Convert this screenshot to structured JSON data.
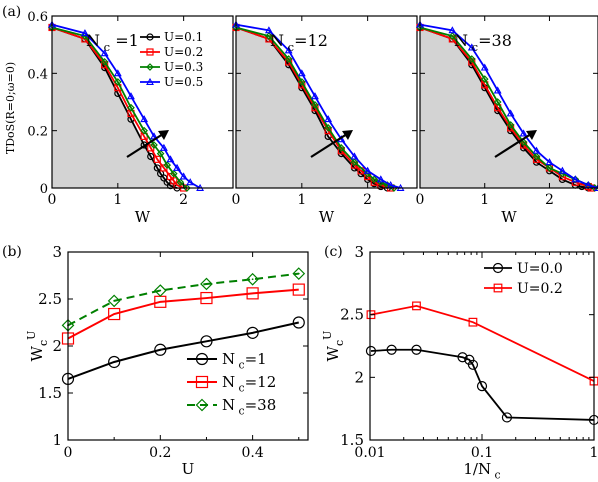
{
  "figure": {
    "panel_labels": [
      "(a)",
      "(b)",
      "(c)"
    ]
  },
  "chart_data": [
    {
      "type": "area",
      "panel": "(a)",
      "ylabel": "TDoS(R=0;ω=0)",
      "xlabel": "W",
      "xlim": [
        0,
        2.75
      ],
      "ylim": [
        0,
        0.6
      ],
      "xticks": [
        0,
        1,
        2
      ],
      "yticks": [
        0,
        0.2,
        0.4,
        0.6
      ],
      "ytick_labels": [
        "0",
        "0.2",
        "0.4",
        "0.6"
      ],
      "legend": {
        "placement": "top-right (first sub-panel)",
        "entries": [
          "U=0.1",
          "U=0.2",
          "U=0.3",
          "U=0.5"
        ]
      },
      "arrow": "points toward increasing U",
      "shaded": "gray region under the U=0.1 curve",
      "subpanels": [
        {
          "label_main": "N",
          "label_sub": "c",
          "label_rest": " =1",
          "series": [
            {
              "name": "U=0.1",
              "color": "#000000",
              "marker": "circle",
              "x": [
                0,
                0.5,
                0.8,
                1.0,
                1.2,
                1.4,
                1.5,
                1.6,
                1.65,
                1.7,
                1.75,
                1.8,
                1.9
              ],
              "y": [
                0.56,
                0.52,
                0.42,
                0.33,
                0.24,
                0.15,
                0.11,
                0.07,
                0.05,
                0.035,
                0.02,
                0.008,
                0
              ]
            },
            {
              "name": "U=0.2",
              "color": "#ff0000",
              "marker": "square",
              "x": [
                0,
                0.5,
                0.8,
                1.0,
                1.2,
                1.4,
                1.5,
                1.6,
                1.7,
                1.8,
                1.85,
                1.9,
                2.0
              ],
              "y": [
                0.56,
                0.52,
                0.43,
                0.35,
                0.26,
                0.18,
                0.14,
                0.1,
                0.07,
                0.04,
                0.025,
                0.01,
                0
              ]
            },
            {
              "name": "U=0.3",
              "color": "#008000",
              "marker": "diamond",
              "x": [
                0,
                0.5,
                0.8,
                1.0,
                1.2,
                1.4,
                1.55,
                1.65,
                1.75,
                1.85,
                1.95,
                2.05
              ],
              "y": [
                0.56,
                0.53,
                0.44,
                0.37,
                0.28,
                0.2,
                0.15,
                0.12,
                0.08,
                0.05,
                0.02,
                0
              ]
            },
            {
              "name": "U=0.5",
              "color": "#0000ff",
              "marker": "triangle",
              "x": [
                0,
                0.5,
                0.8,
                1.0,
                1.2,
                1.4,
                1.55,
                1.7,
                1.8,
                1.9,
                2.0,
                2.1,
                2.25
              ],
              "y": [
                0.57,
                0.54,
                0.47,
                0.4,
                0.32,
                0.24,
                0.18,
                0.14,
                0.1,
                0.07,
                0.04,
                0.02,
                0
              ]
            }
          ]
        },
        {
          "label_main": "N",
          "label_sub": "c",
          "label_rest": "=12",
          "series": [
            {
              "name": "U=0.1",
              "color": "#000000",
              "marker": "circle",
              "x": [
                0,
                0.5,
                0.8,
                1.0,
                1.2,
                1.4,
                1.6,
                1.8,
                1.9,
                2.0,
                2.1,
                2.2,
                2.3
              ],
              "y": [
                0.56,
                0.52,
                0.43,
                0.35,
                0.27,
                0.18,
                0.12,
                0.07,
                0.05,
                0.03,
                0.015,
                0.005,
                0
              ]
            },
            {
              "name": "U=0.2",
              "color": "#ff0000",
              "marker": "square",
              "x": [
                0,
                0.5,
                0.8,
                1.0,
                1.2,
                1.4,
                1.6,
                1.8,
                1.9,
                2.0,
                2.1,
                2.2,
                2.35
              ],
              "y": [
                0.56,
                0.52,
                0.44,
                0.36,
                0.28,
                0.2,
                0.13,
                0.08,
                0.06,
                0.04,
                0.02,
                0.01,
                0
              ]
            },
            {
              "name": "U=0.3",
              "color": "#008000",
              "marker": "diamond",
              "x": [
                0,
                0.5,
                0.8,
                1.0,
                1.2,
                1.4,
                1.6,
                1.8,
                2.0,
                2.1,
                2.2,
                2.3,
                2.4
              ],
              "y": [
                0.56,
                0.53,
                0.45,
                0.37,
                0.29,
                0.21,
                0.14,
                0.09,
                0.05,
                0.03,
                0.02,
                0.01,
                0
              ]
            },
            {
              "name": "U=0.5",
              "color": "#0000ff",
              "marker": "triangle",
              "x": [
                0,
                0.5,
                0.8,
                1.0,
                1.2,
                1.4,
                1.6,
                1.8,
                2.0,
                2.2,
                2.35,
                2.5
              ],
              "y": [
                0.57,
                0.55,
                0.48,
                0.4,
                0.32,
                0.24,
                0.17,
                0.11,
                0.06,
                0.03,
                0.01,
                0
              ]
            }
          ]
        },
        {
          "label_main": "N",
          "label_sub": "c",
          "label_rest": "=38",
          "series": [
            {
              "name": "U=0.1",
              "color": "#000000",
              "marker": "circle",
              "x": [
                0,
                0.5,
                0.8,
                1.0,
                1.2,
                1.4,
                1.6,
                1.8,
                2.0,
                2.2,
                2.4,
                2.5,
                2.6
              ],
              "y": [
                0.56,
                0.52,
                0.43,
                0.35,
                0.27,
                0.2,
                0.14,
                0.09,
                0.06,
                0.03,
                0.01,
                0.005,
                0
              ]
            },
            {
              "name": "U=0.2",
              "color": "#ff0000",
              "marker": "square",
              "x": [
                0,
                0.5,
                0.8,
                1.0,
                1.2,
                1.4,
                1.6,
                1.8,
                2.0,
                2.2,
                2.4,
                2.6,
                2.65
              ],
              "y": [
                0.56,
                0.52,
                0.44,
                0.36,
                0.28,
                0.21,
                0.15,
                0.1,
                0.07,
                0.04,
                0.02,
                0.005,
                0
              ]
            },
            {
              "name": "U=0.3",
              "color": "#008000",
              "marker": "diamond",
              "x": [
                0,
                0.5,
                0.8,
                1.0,
                1.2,
                1.4,
                1.6,
                1.8,
                2.0,
                2.2,
                2.4,
                2.6,
                2.7
              ],
              "y": [
                0.56,
                0.53,
                0.45,
                0.38,
                0.3,
                0.22,
                0.16,
                0.11,
                0.07,
                0.05,
                0.03,
                0.01,
                0
              ]
            },
            {
              "name": "U=0.5",
              "color": "#0000ff",
              "marker": "triangle",
              "x": [
                0,
                0.5,
                0.8,
                1.0,
                1.2,
                1.4,
                1.6,
                1.8,
                2.0,
                2.2,
                2.4,
                2.6,
                2.75
              ],
              "y": [
                0.57,
                0.55,
                0.49,
                0.42,
                0.34,
                0.26,
                0.19,
                0.13,
                0.09,
                0.06,
                0.03,
                0.01,
                0
              ]
            }
          ]
        }
      ]
    },
    {
      "type": "line",
      "panel": "(b)",
      "xlabel": "U",
      "ylabel_main": "W",
      "ylabel_sub": "c",
      "ylabel_sup": "U",
      "xlim": [
        0,
        0.52
      ],
      "ylim": [
        1,
        3
      ],
      "xticks": [
        0,
        0.2,
        0.4
      ],
      "xtick_labels": [
        "0",
        "0.2",
        "0.4"
      ],
      "yticks": [
        1,
        1.5,
        2,
        2.5,
        3
      ],
      "ytick_labels": [
        "1",
        "1.5",
        "2",
        "2.5",
        "3"
      ],
      "legend": {
        "placement": "bottom-right"
      },
      "series": [
        {
          "name_main": "N",
          "name_sub": "c",
          "name_rest": "=1",
          "color": "#000000",
          "marker": "circle",
          "dash": false,
          "x": [
            0,
            0.1,
            0.2,
            0.3,
            0.4,
            0.5
          ],
          "y": [
            1.65,
            1.83,
            1.96,
            2.05,
            2.14,
            2.25
          ]
        },
        {
          "name_main": "N",
          "name_sub": "c",
          "name_rest": "=12",
          "color": "#ff0000",
          "marker": "square",
          "dash": false,
          "x": [
            0,
            0.1,
            0.2,
            0.3,
            0.4,
            0.5
          ],
          "y": [
            2.08,
            2.34,
            2.47,
            2.51,
            2.56,
            2.6
          ]
        },
        {
          "name_main": "N",
          "name_sub": "c",
          "name_rest": "=38",
          "color": "#008000",
          "marker": "diamond-dot",
          "dash": true,
          "x": [
            0,
            0.1,
            0.2,
            0.3,
            0.4,
            0.5
          ],
          "y": [
            2.22,
            2.48,
            2.59,
            2.66,
            2.71,
            2.77
          ]
        }
      ]
    },
    {
      "type": "line",
      "panel": "(c)",
      "xlabel_main": "1/N",
      "xlabel_sub": "c",
      "ylabel_main": "W",
      "ylabel_sub": "c",
      "ylabel_sup": "U",
      "xscale": "log",
      "xlim": [
        0.01,
        1
      ],
      "ylim": [
        1.5,
        3
      ],
      "xticks": [
        0.01,
        0.1,
        1
      ],
      "xtick_labels": [
        "0.01",
        "0.1",
        "1"
      ],
      "yticks": [
        1.5,
        2,
        2.5,
        3
      ],
      "ytick_labels": [
        "1.5",
        "2",
        "2.5",
        "3"
      ],
      "legend": {
        "placement": "top-right"
      },
      "series": [
        {
          "name": "U=0.0",
          "color": "#000000",
          "marker": "circle",
          "x": [
            0.0102,
            0.0156,
            0.026,
            0.067,
            0.077,
            0.083,
            0.1,
            0.167,
            1
          ],
          "y": [
            2.21,
            2.22,
            2.22,
            2.16,
            2.14,
            2.1,
            1.93,
            1.68,
            1.66
          ]
        },
        {
          "name": "U=0.2",
          "color": "#ff0000",
          "marker": "square",
          "x": [
            0.0102,
            0.026,
            0.083,
            1
          ],
          "y": [
            2.5,
            2.57,
            2.44,
            1.97
          ]
        }
      ]
    }
  ]
}
